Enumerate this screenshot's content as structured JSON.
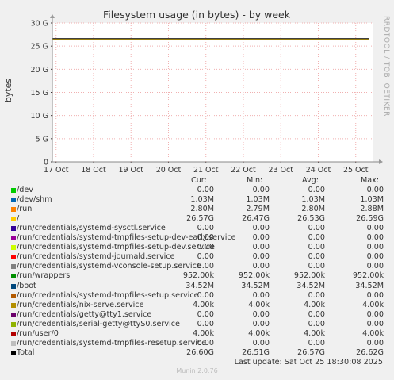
{
  "chart_data": {
    "type": "line",
    "title": "Filesystem usage (in bytes) - by week",
    "ylabel": "bytes",
    "side_label": "RRDTOOL / TOBI OETIKER",
    "x_ticks": [
      "17 Oct",
      "18 Oct",
      "19 Oct",
      "20 Oct",
      "21 Oct",
      "22 Oct",
      "23 Oct",
      "24 Oct",
      "25 Oct"
    ],
    "y_ticks": [
      "0",
      "5 G",
      "10 G",
      "15 G",
      "20 G",
      "25 G",
      "30 G"
    ],
    "y_tick_values": [
      0,
      5,
      10,
      15,
      20,
      25,
      30
    ],
    "ylim": [
      0,
      30
    ],
    "xlim_days": [
      16.9,
      25.45
    ],
    "grid": true,
    "series": [
      {
        "name": "/",
        "color": "#f0c814",
        "y": 26.5
      },
      {
        "name": "Total",
        "color": "#000000",
        "y": 26.6
      }
    ],
    "legend_headers": {
      "cur": "Cur:",
      "min": "Min:",
      "avg": "Avg:",
      "max": "Max:"
    },
    "legend": [
      {
        "name": "/dev",
        "color": "#00cc00",
        "cur": "0.00",
        "min": "0.00",
        "avg": "0.00",
        "max": "0.00"
      },
      {
        "name": "/dev/shm",
        "color": "#0066b3",
        "cur": "1.03M",
        "min": "1.03M",
        "avg": "1.03M",
        "max": "1.03M"
      },
      {
        "name": "/run",
        "color": "#ff8000",
        "cur": "2.80M",
        "min": "2.79M",
        "avg": "2.80M",
        "max": "2.88M"
      },
      {
        "name": "/",
        "color": "#ffcc00",
        "cur": "26.57G",
        "min": "26.47G",
        "avg": "26.53G",
        "max": "26.59G"
      },
      {
        "name": "/run/credentials/systemd-sysctl.service",
        "color": "#330099",
        "cur": "0.00",
        "min": "0.00",
        "avg": "0.00",
        "max": "0.00"
      },
      {
        "name": "/run/credentials/systemd-tmpfiles-setup-dev-early.service",
        "color": "#990099",
        "cur": "0.00",
        "min": "0.00",
        "avg": "0.00",
        "max": "0.00"
      },
      {
        "name": "/run/credentials/systemd-tmpfiles-setup-dev.service",
        "color": "#ccff00",
        "cur": "0.00",
        "min": "0.00",
        "avg": "0.00",
        "max": "0.00"
      },
      {
        "name": "/run/credentials/systemd-journald.service",
        "color": "#ff0000",
        "cur": "0.00",
        "min": "0.00",
        "avg": "0.00",
        "max": "0.00"
      },
      {
        "name": "/run/credentials/systemd-vconsole-setup.service",
        "color": "#808080",
        "cur": "0.00",
        "min": "0.00",
        "avg": "0.00",
        "max": "0.00"
      },
      {
        "name": "/run/wrappers",
        "color": "#008f00",
        "cur": "952.00k",
        "min": "952.00k",
        "avg": "952.00k",
        "max": "952.00k"
      },
      {
        "name": "/boot",
        "color": "#00487d",
        "cur": "34.52M",
        "min": "34.52M",
        "avg": "34.52M",
        "max": "34.52M"
      },
      {
        "name": "/run/credentials/systemd-tmpfiles-setup.service",
        "color": "#b35a00",
        "cur": "0.00",
        "min": "0.00",
        "avg": "0.00",
        "max": "0.00"
      },
      {
        "name": "/run/credentials/nix-serve.service",
        "color": "#b38f00",
        "cur": "4.00k",
        "min": "4.00k",
        "avg": "4.00k",
        "max": "4.00k"
      },
      {
        "name": "/run/credentials/getty@tty1.service",
        "color": "#6b006b",
        "cur": "0.00",
        "min": "0.00",
        "avg": "0.00",
        "max": "0.00"
      },
      {
        "name": "/run/credentials/serial-getty@ttyS0.service",
        "color": "#8fb300",
        "cur": "0.00",
        "min": "0.00",
        "avg": "0.00",
        "max": "0.00"
      },
      {
        "name": "/run/user/0",
        "color": "#b30000",
        "cur": "4.00k",
        "min": "4.00k",
        "avg": "4.00k",
        "max": "4.00k"
      },
      {
        "name": "/run/credentials/systemd-tmpfiles-resetup.service",
        "color": "#bebebe",
        "cur": "0.00",
        "min": "0.00",
        "avg": "0.00",
        "max": "0.00"
      },
      {
        "name": "Total",
        "color": "#000000",
        "cur": "26.60G",
        "min": "26.51G",
        "avg": "26.57G",
        "max": "26.62G"
      }
    ],
    "last_update": "Last update: Sat Oct 25 18:30:08 2025",
    "footer": "Munin 2.0.76"
  }
}
